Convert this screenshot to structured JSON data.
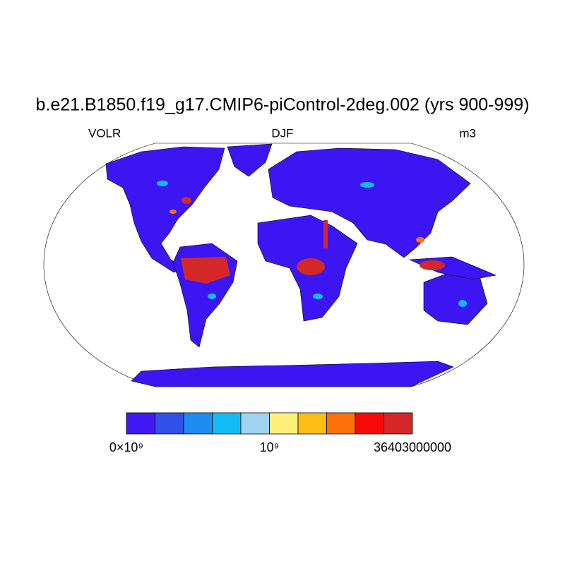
{
  "title": "b.e21.B1850.f19_g17.CMIP6-piControl-2deg.002 (yrs 900-999)",
  "left_string": "VOLR",
  "center_string": "DJF",
  "right_string": "m3",
  "colorbar": {
    "colors": [
      "#4119f5",
      "#3050e8",
      "#1e8cf0",
      "#12bcf5",
      "#a0d4f0",
      "#fff07a",
      "#fcbe14",
      "#fc7008",
      "#f80a08",
      "#d42828"
    ],
    "labels": [
      "0×10⁹",
      "10⁹",
      "36403000000"
    ]
  }
}
